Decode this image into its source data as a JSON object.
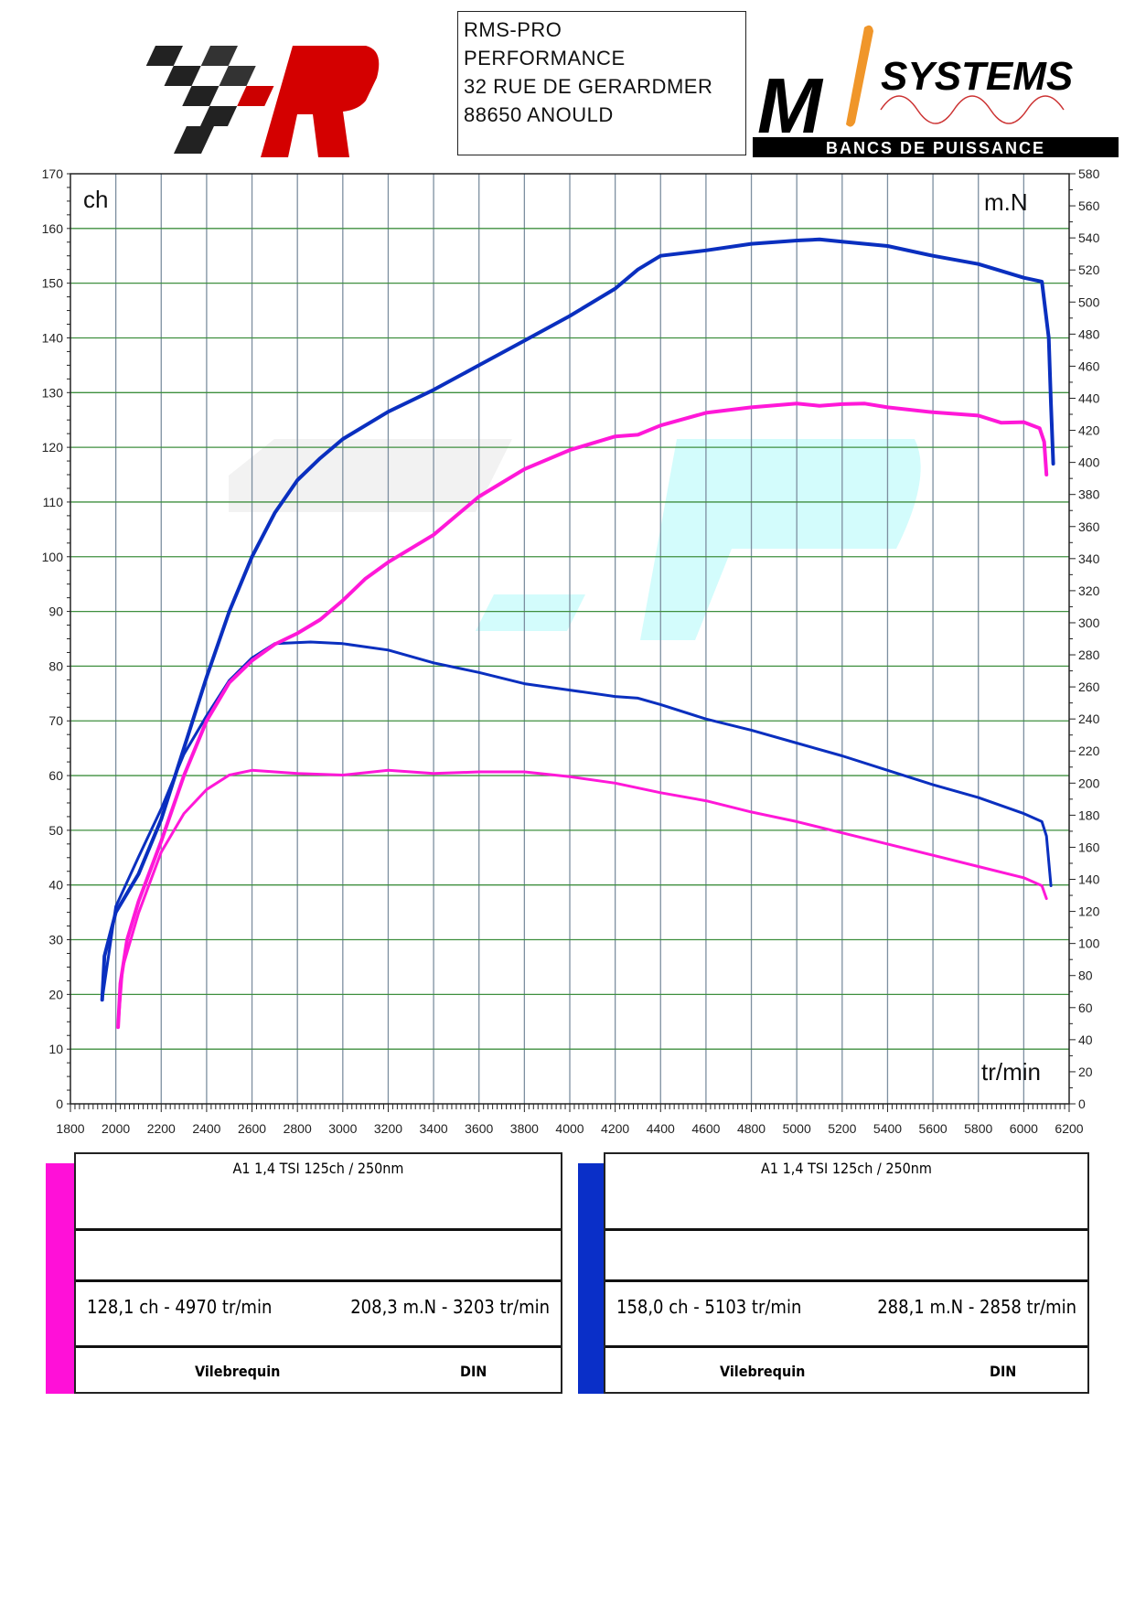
{
  "header": {
    "address_lines": [
      "RMS-PRO",
      "PERFORMANCE",
      "32 RUE DE GERARDMER",
      "88650 ANOULD"
    ],
    "logo_right_text": "SYSTEMS",
    "logo_right_letters": "Mi",
    "logo_right_band": "BANCS DE PUISSANCE"
  },
  "chart_data": {
    "type": "line",
    "left_unit": "ch",
    "right_unit": "m.N",
    "x_unit": "tr/min",
    "xlim": [
      1800,
      6200
    ],
    "ylim_left": [
      0,
      170
    ],
    "ylim_right": [
      0,
      580
    ],
    "x_ticks": [
      1800,
      2000,
      2200,
      2400,
      2600,
      2800,
      3000,
      3200,
      3400,
      3600,
      3800,
      4000,
      4200,
      4400,
      4600,
      4800,
      5000,
      5200,
      5400,
      5600,
      5800,
      6000,
      6200
    ],
    "y_left_ticks": [
      0,
      10,
      20,
      30,
      40,
      50,
      60,
      70,
      80,
      90,
      100,
      110,
      120,
      130,
      140,
      150,
      160,
      170
    ],
    "y_right_ticks": [
      0,
      20,
      40,
      60,
      80,
      100,
      120,
      140,
      160,
      180,
      200,
      220,
      240,
      260,
      280,
      300,
      320,
      340,
      360,
      380,
      400,
      420,
      440,
      460,
      480,
      500,
      520,
      540,
      560,
      580
    ],
    "grid": true,
    "series": [
      {
        "axis": "left",
        "color": "#0a2fbf",
        "points": [
          [
            1940,
            19
          ],
          [
            1950,
            27
          ],
          [
            2000,
            35
          ],
          [
            2100,
            42
          ],
          [
            2200,
            52
          ],
          [
            2300,
            65
          ],
          [
            2400,
            78
          ],
          [
            2500,
            90
          ],
          [
            2600,
            100
          ],
          [
            2700,
            108
          ],
          [
            2800,
            114
          ],
          [
            2900,
            118
          ],
          [
            3000,
            121.5
          ],
          [
            3200,
            126.5
          ],
          [
            3400,
            130.5
          ],
          [
            3600,
            135
          ],
          [
            3800,
            139.5
          ],
          [
            4000,
            144
          ],
          [
            4200,
            149
          ],
          [
            4300,
            152.5
          ],
          [
            4400,
            155
          ],
          [
            4600,
            156
          ],
          [
            4800,
            157.2
          ],
          [
            5000,
            157.8
          ],
          [
            5100,
            158
          ],
          [
            5200,
            157.6
          ],
          [
            5400,
            156.8
          ],
          [
            5600,
            155
          ],
          [
            5800,
            153.5
          ],
          [
            6000,
            151
          ],
          [
            6080,
            150.3
          ],
          [
            6110,
            140
          ],
          [
            6120,
            128
          ],
          [
            6130,
            117
          ]
        ]
      },
      {
        "axis": "right",
        "color": "#0a2fbf",
        "points": [
          [
            1940,
            65
          ],
          [
            2000,
            123
          ],
          [
            2100,
            154
          ],
          [
            2200,
            184
          ],
          [
            2300,
            218
          ],
          [
            2400,
            242
          ],
          [
            2500,
            264
          ],
          [
            2600,
            278
          ],
          [
            2700,
            287
          ],
          [
            2858,
            288
          ],
          [
            3000,
            287
          ],
          [
            3200,
            283
          ],
          [
            3400,
            275
          ],
          [
            3600,
            269
          ],
          [
            3800,
            262
          ],
          [
            4000,
            258
          ],
          [
            4200,
            254
          ],
          [
            4300,
            253
          ],
          [
            4400,
            249
          ],
          [
            4600,
            240
          ],
          [
            4800,
            233
          ],
          [
            5000,
            225
          ],
          [
            5200,
            217
          ],
          [
            5400,
            208
          ],
          [
            5600,
            199
          ],
          [
            5800,
            191
          ],
          [
            6000,
            181
          ],
          [
            6080,
            176
          ],
          [
            6100,
            167
          ],
          [
            6120,
            136
          ]
        ]
      },
      {
        "axis": "left",
        "color": "#ff18d8",
        "points": [
          [
            2010,
            14
          ],
          [
            2020,
            22
          ],
          [
            2050,
            30
          ],
          [
            2100,
            37
          ],
          [
            2200,
            48
          ],
          [
            2300,
            60
          ],
          [
            2400,
            70
          ],
          [
            2500,
            77
          ],
          [
            2600,
            81
          ],
          [
            2700,
            84
          ],
          [
            2800,
            86
          ],
          [
            2900,
            88.5
          ],
          [
            3000,
            92
          ],
          [
            3100,
            96
          ],
          [
            3200,
            99
          ],
          [
            3400,
            104
          ],
          [
            3500,
            107.5
          ],
          [
            3600,
            111
          ],
          [
            3800,
            116
          ],
          [
            4000,
            119.5
          ],
          [
            4200,
            122
          ],
          [
            4300,
            122.3
          ],
          [
            4400,
            124
          ],
          [
            4600,
            126.3
          ],
          [
            4800,
            127.3
          ],
          [
            5000,
            128
          ],
          [
            5100,
            127.6
          ],
          [
            5200,
            127.9
          ],
          [
            5300,
            128
          ],
          [
            5400,
            127.3
          ],
          [
            5600,
            126.4
          ],
          [
            5800,
            125.8
          ],
          [
            5900,
            124.5
          ],
          [
            6000,
            124.6
          ],
          [
            6070,
            123.5
          ],
          [
            6090,
            121
          ],
          [
            6100,
            115
          ]
        ]
      },
      {
        "axis": "right",
        "color": "#ff18d8",
        "points": [
          [
            2010,
            48
          ],
          [
            2030,
            85
          ],
          [
            2100,
            119
          ],
          [
            2200,
            157
          ],
          [
            2300,
            181
          ],
          [
            2400,
            196
          ],
          [
            2500,
            205
          ],
          [
            2600,
            208
          ],
          [
            2800,
            206
          ],
          [
            3000,
            205
          ],
          [
            3200,
            208
          ],
          [
            3400,
            206
          ],
          [
            3600,
            207
          ],
          [
            3800,
            207
          ],
          [
            4000,
            204
          ],
          [
            4200,
            200
          ],
          [
            4400,
            194
          ],
          [
            4600,
            189
          ],
          [
            4800,
            182
          ],
          [
            5000,
            176
          ],
          [
            5200,
            169
          ],
          [
            5400,
            162
          ],
          [
            5600,
            155
          ],
          [
            5800,
            148
          ],
          [
            6000,
            141
          ],
          [
            6080,
            136
          ],
          [
            6100,
            128
          ]
        ]
      }
    ]
  },
  "tables": [
    {
      "color": "#ff10d8",
      "title": "A1  1,4 TSI 125ch / 250nm",
      "power": "128,1 ch - 4970 tr/min",
      "torque": "208,3 m.N - 3203 tr/min",
      "measure": "Vilebrequin",
      "norm": "DIN"
    },
    {
      "color": "#0a2fc8",
      "title": "A1  1,4 TSI 125ch / 250nm",
      "power": "158,0 ch - 5103 tr/min",
      "torque": "288,1 m.N - 2858 tr/min",
      "measure": "Vilebrequin",
      "norm": "DIN"
    }
  ]
}
